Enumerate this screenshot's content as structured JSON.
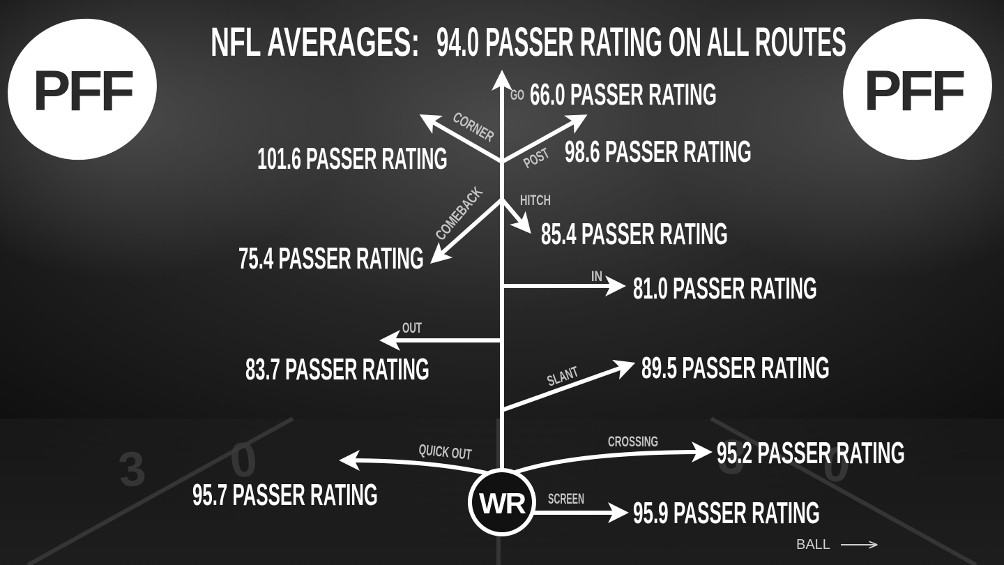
{
  "title": {
    "prefix": "NFL AVERAGES:",
    "text": "94.0 PASSER RATING ON ALL ROUTES"
  },
  "logos": {
    "text": "PFF"
  },
  "player": {
    "label": "WR"
  },
  "ball": {
    "label": "BALL"
  },
  "routes": {
    "go": {
      "name": "GO",
      "rating": "66.0 PASSER RATING"
    },
    "corner": {
      "name": "CORNER",
      "rating": "101.6 PASSER RATING"
    },
    "post": {
      "name": "POST",
      "rating": "98.6 PASSER RATING"
    },
    "hitch": {
      "name": "HITCH",
      "rating": "85.4 PASSER RATING"
    },
    "comeback": {
      "name": "COMEBACK",
      "rating": "75.4 PASSER RATING"
    },
    "in": {
      "name": "IN",
      "rating": "81.0 PASSER RATING"
    },
    "out": {
      "name": "OUT",
      "rating": "83.7 PASSER RATING"
    },
    "slant": {
      "name": "SLANT",
      "rating": "89.5 PASSER RATING"
    },
    "crossing": {
      "name": "CROSSING",
      "rating": "95.2 PASSER RATING"
    },
    "quick_out": {
      "name": "QUICK OUT",
      "rating": "95.7 PASSER RATING"
    },
    "screen": {
      "name": "SCREEN",
      "rating": "95.9 PASSER RATING"
    }
  },
  "colors": {
    "background": "#141414",
    "line": "#ffffff",
    "route_label": "#c4c4c4",
    "field_number": "#3a3a3a"
  }
}
